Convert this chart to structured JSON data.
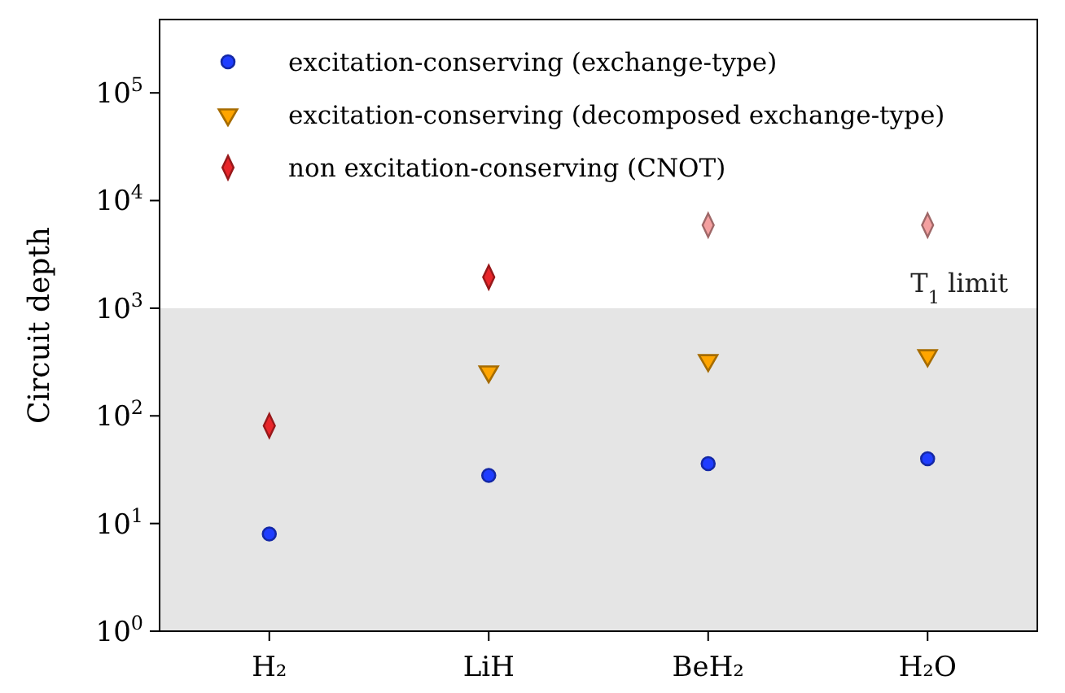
{
  "chart_data": {
    "type": "scatter",
    "ylabel": "Circuit depth",
    "log": "y",
    "categories": [
      "H₂",
      "LiH",
      "BeH₂",
      "H₂O"
    ],
    "ylim": [
      1,
      480000
    ],
    "yticks": [
      {
        "value": 1,
        "label": "10$^{0}$"
      },
      {
        "value": 10,
        "label": "10$^{1}$"
      },
      {
        "value": 100,
        "label": "10$^{2}$"
      },
      {
        "value": 1000,
        "label": "10$^{3}$"
      },
      {
        "value": 10000,
        "label": "10$^{4}$"
      },
      {
        "value": 100000,
        "label": "10$^{5}$"
      }
    ],
    "series": [
      {
        "name": "excitation-conserving (exchange-type)",
        "color": "#1f3dff",
        "marker": "circle",
        "values": [
          8,
          28,
          36,
          40
        ]
      },
      {
        "name": "excitation-conserving (decomposed exchange-type)",
        "color": "#ffa500",
        "marker": "triangle",
        "values": [
          null,
          257,
          327,
          363
        ]
      },
      {
        "name": "non excitation-conserving (CNOT)",
        "color": "#e8262a",
        "marker": "diamond",
        "values": [
          81,
          1940,
          null,
          null
        ]
      },
      {
        "color": "#f4a0a0",
        "marker": "diamond",
        "values": [
          null,
          null,
          5900,
          5900
        ]
      }
    ],
    "bands": [
      {
        "axis": "y",
        "from": 1,
        "to": 1000,
        "label": "T$_{1}$ limit",
        "color": "#e5e5e5"
      }
    ],
    "legend": "top left",
    "grid": false
  }
}
